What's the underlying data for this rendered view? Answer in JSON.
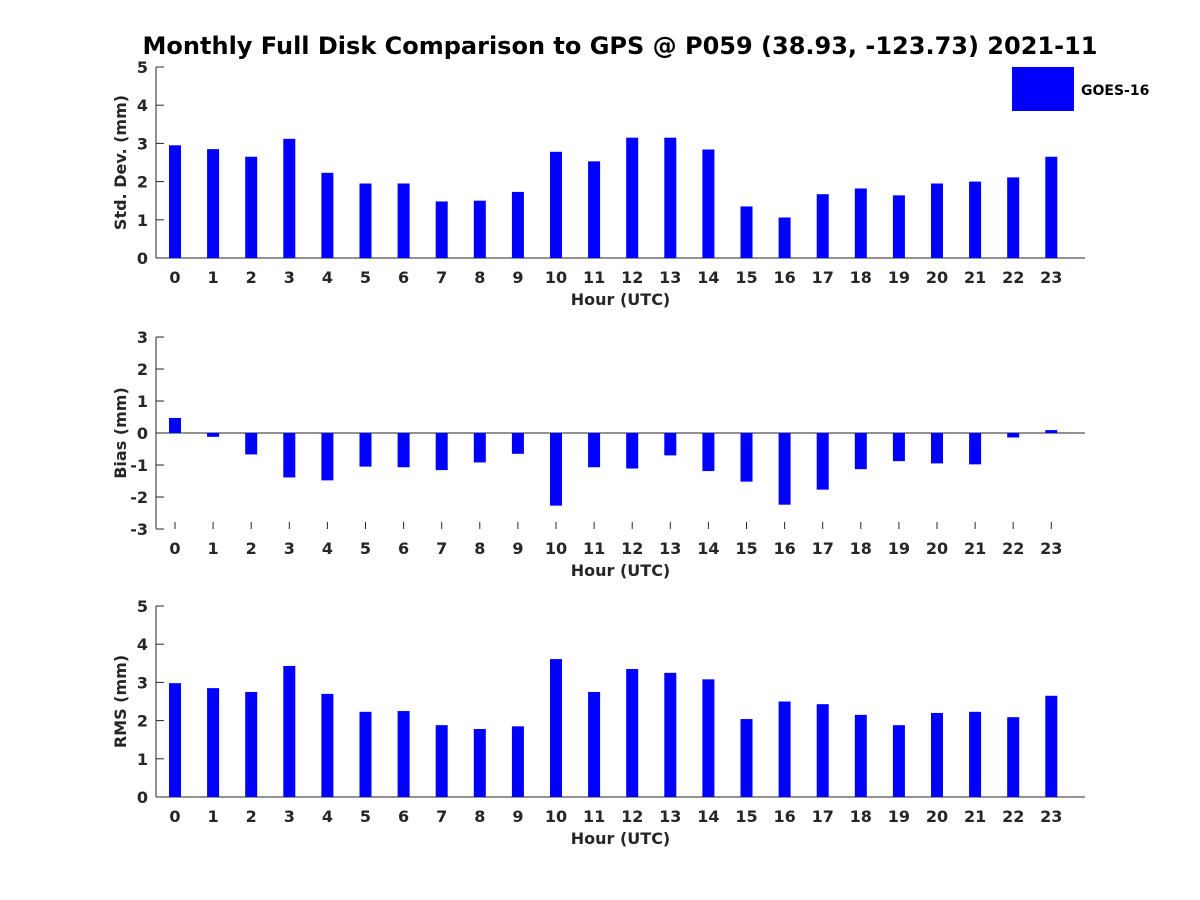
{
  "title": "Monthly Full Disk Comparison to GPS @ P059 (38.93, -123.73) 2021-11",
  "legend": {
    "label": "GOES-16",
    "color": "#0000ff",
    "placement": "top-right"
  },
  "chart_data": [
    {
      "type": "bar",
      "xlabel": "Hour (UTC)",
      "ylabel": "Std. Dev. (mm)",
      "ylim": [
        0,
        5
      ],
      "yticks": [
        0,
        1,
        2,
        3,
        4,
        5
      ],
      "categories": [
        0,
        1,
        2,
        3,
        4,
        5,
        6,
        7,
        8,
        9,
        10,
        11,
        12,
        13,
        14,
        15,
        16,
        17,
        18,
        19,
        20,
        21,
        22,
        23
      ],
      "series": [
        {
          "name": "GOES-16",
          "values": [
            2.95,
            2.85,
            2.65,
            3.12,
            2.23,
            1.95,
            1.95,
            1.48,
            1.5,
            1.73,
            2.78,
            2.53,
            3.15,
            3.15,
            2.84,
            1.35,
            1.06,
            1.67,
            1.82,
            1.64,
            1.95,
            2.0,
            2.11,
            2.65
          ]
        }
      ]
    },
    {
      "type": "bar",
      "xlabel": "Hour (UTC)",
      "ylabel": "Bias (mm)",
      "ylim": [
        -3,
        3
      ],
      "yticks": [
        -3,
        -2,
        -1,
        0,
        1,
        2,
        3
      ],
      "categories": [
        0,
        1,
        2,
        3,
        4,
        5,
        6,
        7,
        8,
        9,
        10,
        11,
        12,
        13,
        14,
        15,
        16,
        17,
        18,
        19,
        20,
        21,
        22,
        23
      ],
      "series": [
        {
          "name": "GOES-16",
          "values": [
            0.47,
            -0.12,
            -0.67,
            -1.39,
            -1.48,
            -1.05,
            -1.07,
            -1.16,
            -0.92,
            -0.65,
            -2.27,
            -1.07,
            -1.11,
            -0.7,
            -1.19,
            -1.52,
            -2.24,
            -1.77,
            -1.13,
            -0.88,
            -0.95,
            -0.98,
            -0.14,
            0.09
          ]
        }
      ]
    },
    {
      "type": "bar",
      "xlabel": "Hour (UTC)",
      "ylabel": "RMS (mm)",
      "ylim": [
        0,
        5
      ],
      "yticks": [
        0,
        1,
        2,
        3,
        4,
        5
      ],
      "categories": [
        0,
        1,
        2,
        3,
        4,
        5,
        6,
        7,
        8,
        9,
        10,
        11,
        12,
        13,
        14,
        15,
        16,
        17,
        18,
        19,
        20,
        21,
        22,
        23
      ],
      "series": [
        {
          "name": "GOES-16",
          "values": [
            2.98,
            2.85,
            2.75,
            3.43,
            2.7,
            2.23,
            2.25,
            1.88,
            1.78,
            1.85,
            3.61,
            2.75,
            3.35,
            3.25,
            3.08,
            2.04,
            2.5,
            2.43,
            2.15,
            1.88,
            2.2,
            2.23,
            2.09,
            2.65
          ]
        }
      ]
    }
  ]
}
